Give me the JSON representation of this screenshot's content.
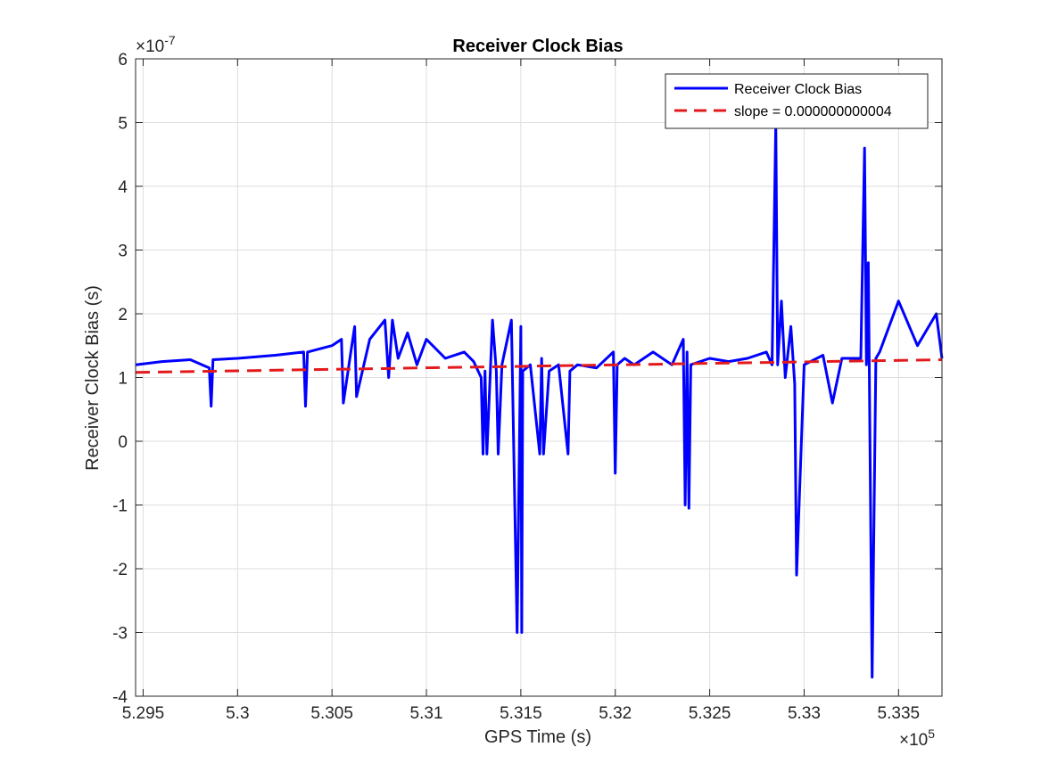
{
  "chart_data": {
    "type": "line",
    "title": "Receiver Clock Bias",
    "xlabel": "GPS Time (s)",
    "ylabel": "Receiver Clock Bias (s)",
    "x_multiplier_label": "×10",
    "x_multiplier_exp": "5",
    "y_multiplier_label": "×10",
    "y_multiplier_exp": "-7",
    "xlim": [
      529460,
      533730
    ],
    "ylim": [
      -4,
      6
    ],
    "x_ticks": [
      5.295,
      5.3,
      5.305,
      5.31,
      5.315,
      5.32,
      5.325,
      5.33,
      5.335
    ],
    "x_tick_labels": [
      "5.295",
      "5.3",
      "5.305",
      "5.31",
      "5.315",
      "5.32",
      "5.325",
      "5.33",
      "5.335"
    ],
    "y_ticks": [
      -4,
      -3,
      -2,
      -1,
      0,
      1,
      2,
      3,
      4,
      5,
      6
    ],
    "y_tick_labels": [
      "-4",
      "-3",
      "-2",
      "-1",
      "0",
      "1",
      "2",
      "3",
      "4",
      "5",
      "6"
    ],
    "grid": true,
    "legend_position": "top-right",
    "series": [
      {
        "name": "Receiver Clock Bias",
        "color": "#0000ff",
        "style": "solid",
        "x": [
          529460,
          529600,
          529750,
          529850,
          529860,
          529870,
          530000,
          530200,
          530350,
          530360,
          530370,
          530500,
          530550,
          530560,
          530600,
          530620,
          530630,
          530700,
          530780,
          530800,
          530820,
          530850,
          530900,
          530950,
          531000,
          531100,
          531200,
          531250,
          531290,
          531300,
          531310,
          531320,
          531350,
          531370,
          531380,
          531400,
          531450,
          531480,
          531500,
          531505,
          531510,
          531550,
          531600,
          531610,
          531620,
          531650,
          531700,
          531750,
          531760,
          531800,
          531900,
          531990,
          532000,
          532010,
          532050,
          532100,
          532200,
          532300,
          532360,
          532370,
          532380,
          532390,
          532400,
          532500,
          532600,
          532700,
          532800,
          532830,
          532850,
          532860,
          532880,
          532900,
          532930,
          532950,
          532960,
          533000,
          533100,
          533150,
          533200,
          533300,
          533320,
          533330,
          533340,
          533360,
          533380,
          533400,
          533500,
          533600,
          533700,
          533730
        ],
        "values": [
          1.2,
          1.25,
          1.28,
          1.15,
          0.55,
          1.28,
          1.3,
          1.35,
          1.4,
          0.55,
          1.4,
          1.5,
          1.6,
          0.6,
          1.4,
          1.8,
          0.7,
          1.6,
          1.9,
          1.0,
          1.9,
          1.3,
          1.7,
          1.2,
          1.6,
          1.3,
          1.4,
          1.25,
          1.0,
          -0.2,
          1.1,
          -0.2,
          1.9,
          1.1,
          -0.2,
          1.2,
          1.9,
          -3.0,
          1.8,
          -3.0,
          1.1,
          1.2,
          -0.2,
          1.3,
          -0.2,
          1.1,
          1.2,
          -0.2,
          1.1,
          1.2,
          1.15,
          1.4,
          -0.5,
          1.2,
          1.3,
          1.2,
          1.4,
          1.2,
          1.6,
          -1.0,
          1.4,
          -1.05,
          1.2,
          1.3,
          1.25,
          1.3,
          1.4,
          1.2,
          5.0,
          1.2,
          2.2,
          1.0,
          1.8,
          0.9,
          -2.1,
          1.2,
          1.35,
          0.6,
          1.3,
          1.3,
          4.6,
          1.2,
          2.8,
          -3.7,
          1.3,
          1.4,
          2.2,
          1.5,
          2.0,
          1.3
        ]
      },
      {
        "name": "slope = 0.000000000004",
        "color": "#e31a1c",
        "style": "dashed",
        "x": [
          529460,
          533730
        ],
        "values": [
          1.08,
          1.28
        ]
      }
    ]
  }
}
